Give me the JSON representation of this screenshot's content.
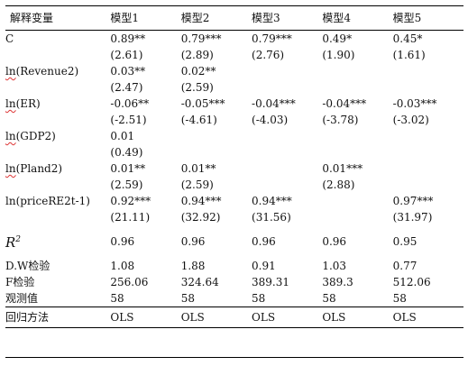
{
  "header": {
    "var_label": "解释变量",
    "models": [
      "模型1",
      "模型2",
      "模型3",
      "模型4",
      "模型5"
    ]
  },
  "rows": [
    {
      "label": "C",
      "coef": [
        "0.89**",
        "0.79***",
        "0.79***",
        "0.49*",
        "0.45*"
      ],
      "t": [
        "(2.61)",
        "(2.89)",
        "(2.76)",
        "(1.90)",
        "(1.61)"
      ]
    },
    {
      "label": "ln(Revenue2)",
      "coef": [
        "0.03**",
        "0.02**",
        "",
        "",
        ""
      ],
      "t": [
        "(2.47)",
        "(2.59)",
        "",
        "",
        ""
      ]
    },
    {
      "label": "ln(ER)",
      "coef": [
        "-0.06**",
        "-0.05***",
        "-0.04***",
        "-0.04***",
        "-0.03***"
      ],
      "t": [
        "(-2.51)",
        "(-4.61)",
        "(-4.03)",
        "(-3.78)",
        "(-3.02)"
      ]
    },
    {
      "label": "ln(GDP2)",
      "coef": [
        "0.01",
        "",
        "",
        "",
        ""
      ],
      "t": [
        "(0.49)",
        "",
        "",
        "",
        ""
      ]
    },
    {
      "label": "ln(Pland2)",
      "coef": [
        "0.01**",
        "0.01**",
        "",
        "0.01***",
        ""
      ],
      "t": [
        "(2.59)",
        "(2.59)",
        "",
        "(2.88)",
        ""
      ]
    },
    {
      "label": "ln(priceRE2t-1)",
      "coef": [
        "0.92***",
        "0.94***",
        "0.94***",
        "",
        "0.97***"
      ],
      "t": [
        "(21.11)",
        "(32.92)",
        "(31.56)",
        "",
        "(31.97)"
      ]
    }
  ],
  "r2": {
    "label_main": "R",
    "label_sup": "2",
    "values": [
      "0.96",
      "0.96",
      "0.96",
      "0.96",
      "0.95"
    ]
  },
  "dw": {
    "label": "D.W检验",
    "values": [
      "1.08",
      "1.88",
      "0.91",
      "1.03",
      "0.77"
    ]
  },
  "f": {
    "label": "F检验",
    "values": [
      "256.06",
      "324.64",
      "389.31",
      "389.3",
      "512.06"
    ]
  },
  "obs": {
    "label": "观测值",
    "values": [
      "58",
      "58",
      "58",
      "58",
      "58"
    ]
  },
  "method": {
    "label": "回归方法",
    "values": [
      "OLS",
      "OLS",
      "OLS",
      "OLS",
      "OLS"
    ]
  },
  "colors": {
    "rule": "#000000",
    "spell_underline": "#d33333"
  }
}
